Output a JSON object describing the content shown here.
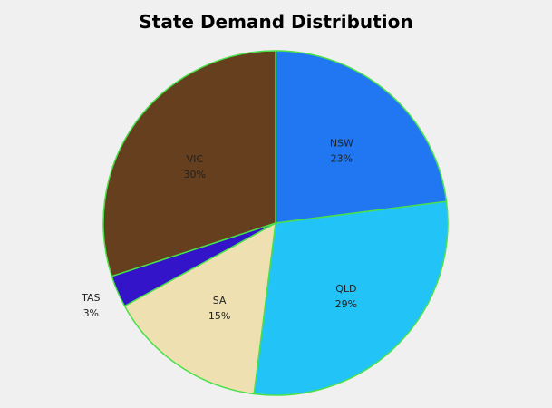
{
  "chart_data": {
    "type": "pie",
    "title": "State Demand Distribution",
    "categories": [
      "NSW",
      "QLD",
      "SA",
      "TAS",
      "VIC"
    ],
    "values": [
      23,
      29,
      15,
      3,
      30
    ],
    "labels": [
      "23%",
      "29%",
      "15%",
      "3%",
      "30%"
    ],
    "colors": [
      "#2177f2",
      "#22c4f8",
      "#eee0b0",
      "#3414c8",
      "#653f1e"
    ],
    "slice_border_color": "#49e04a",
    "start": "top",
    "direction": "clockwise",
    "legend": "none"
  }
}
